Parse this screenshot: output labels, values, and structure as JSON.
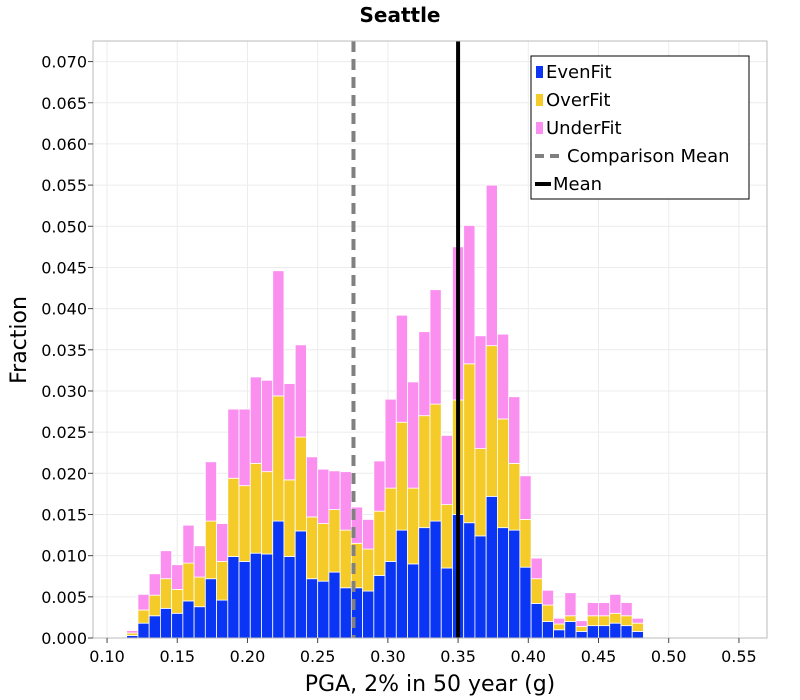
{
  "chart_data": {
    "type": "bar",
    "stacked": true,
    "title": "Seattle",
    "xlabel": "PGA, 2% in 50 year (g)",
    "ylabel": "Fraction",
    "xlim": [
      0.09,
      0.57
    ],
    "ylim": [
      0,
      0.0725
    ],
    "xticks": [
      0.1,
      0.15,
      0.2,
      0.25,
      0.3,
      0.35,
      0.4,
      0.45,
      0.5,
      0.55
    ],
    "xtick_labels": [
      "0.10",
      "0.15",
      "0.20",
      "0.25",
      "0.30",
      "0.35",
      "0.40",
      "0.45",
      "0.50",
      "0.55"
    ],
    "yticks": [
      0,
      0.005,
      0.01,
      0.015,
      0.02,
      0.025,
      0.03,
      0.035,
      0.04,
      0.045,
      0.05,
      0.055,
      0.06,
      0.065,
      0.07
    ],
    "ytick_labels": [
      "0.000",
      "0.005",
      "0.010",
      "0.015",
      "0.020",
      "0.025",
      "0.030",
      "0.035",
      "0.040",
      "0.045",
      "0.050",
      "0.055",
      "0.060",
      "0.065",
      "0.070"
    ],
    "grid": true,
    "bin_width": 0.008,
    "bin_starts": [
      0.09,
      0.098,
      0.106,
      0.114,
      0.122,
      0.13,
      0.138,
      0.146,
      0.154,
      0.162,
      0.17,
      0.178,
      0.186,
      0.194,
      0.202,
      0.21,
      0.218,
      0.226,
      0.234,
      0.242,
      0.25,
      0.258,
      0.266,
      0.274,
      0.282,
      0.29,
      0.298,
      0.306,
      0.314,
      0.322,
      0.33,
      0.338,
      0.346,
      0.354,
      0.362,
      0.37,
      0.378,
      0.386,
      0.394,
      0.402,
      0.41,
      0.418,
      0.426,
      0.434,
      0.442,
      0.45,
      0.458,
      0.466,
      0.474,
      0.482,
      0.49,
      0.498,
      0.506,
      0.514,
      0.522,
      0.53,
      0.538,
      0.546,
      0.554,
      0.562
    ],
    "series": [
      {
        "name": "EvenFit",
        "color": "#0a35f5",
        "values": [
          0,
          0,
          0,
          0.0003,
          0.0018,
          0.0027,
          0.0036,
          0.003,
          0.0045,
          0.0038,
          0.0072,
          0.0046,
          0.0099,
          0.0093,
          0.0103,
          0.0102,
          0.0142,
          0.0099,
          0.013,
          0.0072,
          0.0069,
          0.008,
          0.0061,
          0.0061,
          0.0057,
          0.0076,
          0.0093,
          0.0131,
          0.009,
          0.0134,
          0.0142,
          0.0085,
          0.015,
          0.014,
          0.0124,
          0.0172,
          0.0134,
          0.0131,
          0.0086,
          0.0042,
          0.002,
          0.001,
          0.002,
          0.0008,
          0.0015,
          0.0015,
          0.0018,
          0.0015,
          0.0008,
          0,
          0,
          0,
          0,
          0,
          0,
          0,
          0,
          0,
          0,
          0
        ]
      },
      {
        "name": "OverFit",
        "color": "#f5cb2a",
        "values": [
          0,
          0,
          0,
          0.0003,
          0.0016,
          0.0025,
          0.0036,
          0.0029,
          0.0046,
          0.0036,
          0.007,
          0.0047,
          0.0095,
          0.0092,
          0.0109,
          0.01,
          0.0152,
          0.0093,
          0.0114,
          0.0075,
          0.007,
          0.0076,
          0.007,
          0.0054,
          0.0051,
          0.0078,
          0.0089,
          0.0131,
          0.0092,
          0.0136,
          0.0142,
          0.0077,
          0.0139,
          0.0193,
          0.0106,
          0.0183,
          0.0132,
          0.0081,
          0.0058,
          0.003,
          0.002,
          0.0007,
          0.0007,
          0.0006,
          0.0012,
          0.0012,
          0.0012,
          0.0012,
          0.001,
          0,
          0,
          0,
          0,
          0,
          0,
          0,
          0,
          0,
          0,
          0
        ]
      },
      {
        "name": "UnderFit",
        "color": "#fb8ff0",
        "values": [
          0,
          0,
          0,
          0.0003,
          0.0019,
          0.0026,
          0.0034,
          0.003,
          0.0046,
          0.0038,
          0.0072,
          0.0046,
          0.0084,
          0.0093,
          0.0105,
          0.0111,
          0.0152,
          0.0117,
          0.0112,
          0.0073,
          0.0066,
          0.0047,
          0.0071,
          0.0044,
          0.0036,
          0.0061,
          0.0108,
          0.013,
          0.0129,
          0.0102,
          0.0139,
          0.0084,
          0.0186,
          0.0168,
          0.0137,
          0.0195,
          0.0103,
          0.0081,
          0.0053,
          0.0025,
          0.0018,
          0.0007,
          0.0028,
          0.0007,
          0.0016,
          0.0016,
          0.0023,
          0.0016,
          0.0006,
          0,
          0,
          0,
          0,
          0,
          0,
          0,
          0,
          0,
          0,
          0
        ]
      }
    ],
    "vlines": [
      {
        "name": "Comparison Mean",
        "x": 0.2755,
        "color": "#808080",
        "style": "dashed"
      },
      {
        "name": "Mean",
        "x": 0.35,
        "color": "#000000",
        "style": "solid"
      }
    ],
    "legend_position": "top-right",
    "legend": [
      "EvenFit",
      "OverFit",
      "UnderFit",
      "Comparison Mean",
      "Mean"
    ]
  }
}
